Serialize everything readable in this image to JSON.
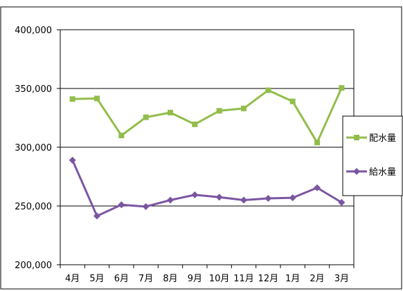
{
  "chart_data": {
    "type": "line",
    "categories": [
      "4月",
      "5月",
      "6月",
      "7月",
      "8月",
      "9月",
      "10月",
      "11月",
      "12月",
      "1月",
      "2月",
      "3月"
    ],
    "series": [
      {
        "name": "配水量",
        "color": "#92bd4b",
        "marker": "square",
        "values": [
          341000,
          341500,
          310000,
          325500,
          329500,
          319500,
          331000,
          333000,
          348500,
          339000,
          304000,
          350500
        ]
      },
      {
        "name": "給水量",
        "color": "#7b55a2",
        "marker": "diamond",
        "values": [
          289000,
          241500,
          251000,
          249500,
          255000,
          259500,
          257500,
          255000,
          256500,
          257000,
          265500,
          253000
        ]
      }
    ],
    "ylim": [
      200000,
      400000
    ],
    "yticks": [
      200000,
      250000,
      300000,
      350000,
      400000
    ],
    "ytick_labels": [
      "200,000",
      "250,000",
      "300,000",
      "350,000",
      "400,000"
    ],
    "grid": true,
    "legend_position": "right"
  }
}
